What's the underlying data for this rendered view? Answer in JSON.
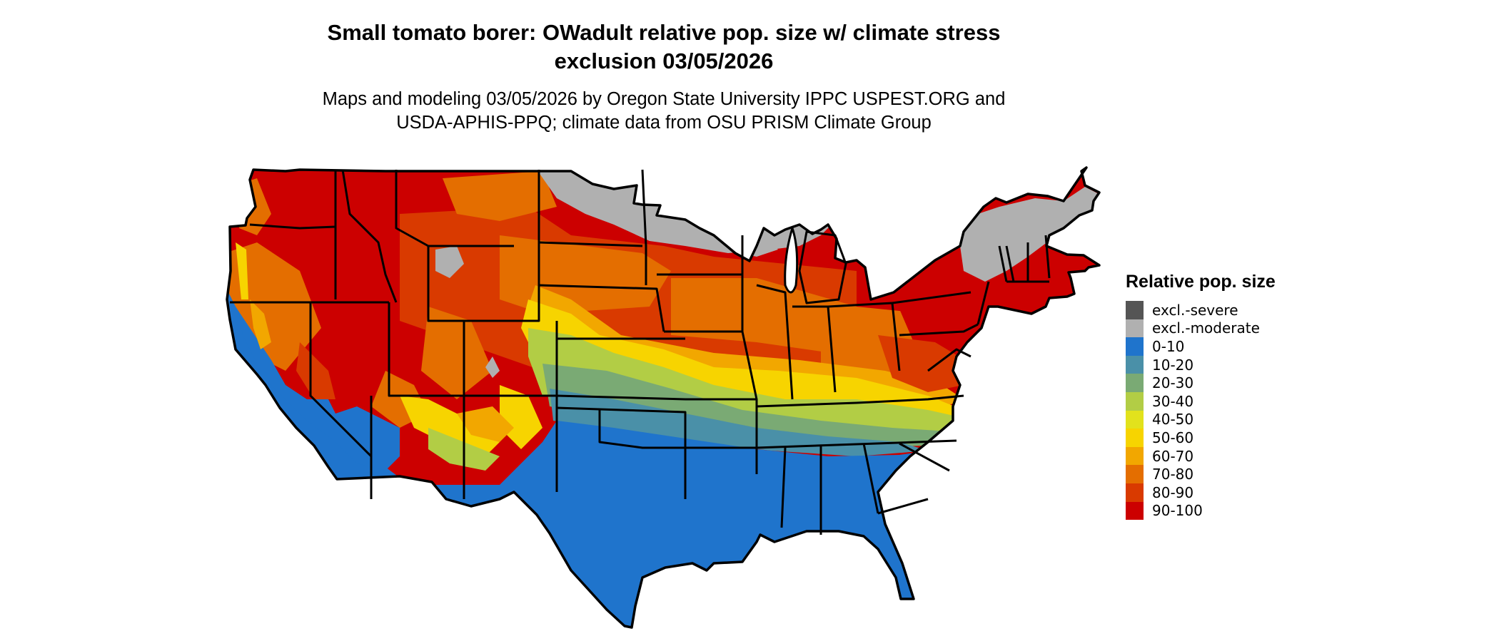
{
  "title": {
    "line1": "Small tomato borer: OWadult relative pop. size w/ climate stress",
    "line2": "exclusion 03/05/2026"
  },
  "subtitle": {
    "line1": "Maps and modeling 03/05/2026 by Oregon State University IPPC USPEST.ORG and",
    "line2": "USDA-APHIS-PPQ; climate data from OSU PRISM Climate Group"
  },
  "legend": {
    "title": "Relative pop. size",
    "items": [
      {
        "label": "excl.-severe",
        "color": "#555555"
      },
      {
        "label": "excl.-moderate",
        "color": "#b0b0b0"
      },
      {
        "label": "0-10",
        "color": "#1f74cc"
      },
      {
        "label": "10-20",
        "color": "#4a90a8"
      },
      {
        "label": "20-30",
        "color": "#7aaa74"
      },
      {
        "label": "30-40",
        "color": "#b2cd45"
      },
      {
        "label": "40-50",
        "color": "#e2e21c"
      },
      {
        "label": "50-60",
        "color": "#f7d400"
      },
      {
        "label": "60-70",
        "color": "#f2a700"
      },
      {
        "label": "70-80",
        "color": "#e46e00"
      },
      {
        "label": "80-90",
        "color": "#d93a00"
      },
      {
        "label": "90-100",
        "color": "#cc0000"
      }
    ]
  },
  "map": {
    "region": "Contiguous United States",
    "border_color": "#000000"
  }
}
